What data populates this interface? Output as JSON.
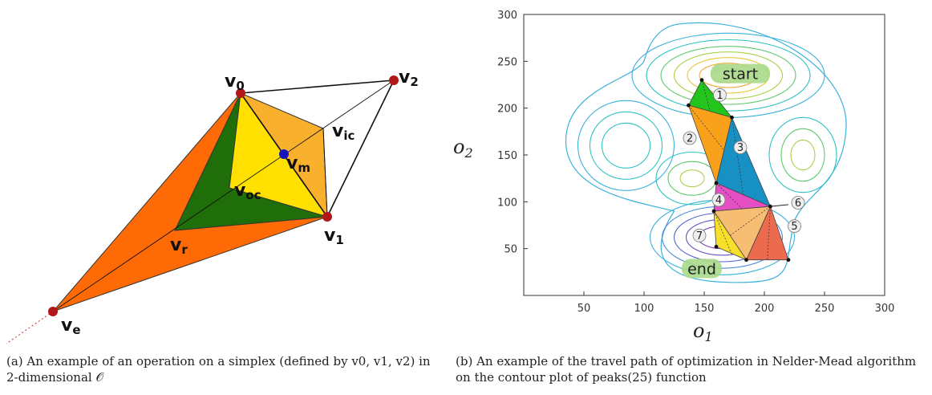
{
  "figure_a": {
    "labels": {
      "v0": [
        "v",
        "0"
      ],
      "v1": [
        "v",
        "1"
      ],
      "v2": [
        "v",
        "2"
      ],
      "ve": [
        "v",
        "e"
      ],
      "vr": [
        "v",
        "r"
      ],
      "vm": [
        "v",
        "m"
      ],
      "vic": [
        "v",
        "ic"
      ],
      "voc": [
        "v",
        "oc"
      ]
    },
    "colors": {
      "reflection": "#fd6a06",
      "outer_contraction": "#1f6e0a",
      "inner_contraction": "#ffe000",
      "inner_right": "#f9b02d",
      "vertex": "#b01818",
      "centroid": "#1515c0"
    },
    "caption": "(a) An example of an operation on a simplex (defined by v0, v1, v2) in 2-dimensional 𝒪"
  },
  "chart_data": {
    "type": "contour",
    "xlim": [
      0,
      300
    ],
    "ylim": [
      0,
      300
    ],
    "xticks": [
      50,
      100,
      150,
      200,
      250,
      300
    ],
    "yticks": [
      50,
      100,
      150,
      200,
      250,
      300
    ],
    "xlabel": "o1",
    "ylabel": "o2",
    "xlabel_parts": [
      "o",
      "1"
    ],
    "ylabel_parts": [
      "o",
      "2"
    ],
    "path_points": [
      {
        "x": 148,
        "y": 230
      },
      {
        "x": 137,
        "y": 203
      },
      {
        "x": 173,
        "y": 190
      },
      {
        "x": 160,
        "y": 120
      },
      {
        "x": 205,
        "y": 95
      },
      {
        "x": 158,
        "y": 90
      },
      {
        "x": 185,
        "y": 38
      },
      {
        "x": 220,
        "y": 38
      },
      {
        "x": 160,
        "y": 52
      }
    ],
    "triangles": [
      {
        "step": "1",
        "vertices": [
          0,
          1,
          2
        ],
        "color": "#23c41c"
      },
      {
        "step": "2",
        "vertices": [
          1,
          2,
          3
        ],
        "color": "#f9a11b"
      },
      {
        "step": "3",
        "vertices": [
          2,
          3,
          4
        ],
        "color": "#1790c4"
      },
      {
        "step": "4",
        "vertices": [
          3,
          4,
          5
        ],
        "color": "#e54fc4"
      },
      {
        "step": "5",
        "vertices": [
          4,
          6,
          7
        ],
        "color": "#ec6a4e"
      },
      {
        "step": "6",
        "vertices": [
          4,
          5,
          6
        ],
        "color": "#f7bd73"
      },
      {
        "step": "7",
        "vertices": [
          5,
          6,
          8
        ],
        "color": "#f8df2a"
      }
    ],
    "step_labels": [
      {
        "text": "1",
        "x": 163,
        "y": 214
      },
      {
        "text": "2",
        "x": 138,
        "y": 168
      },
      {
        "text": "3",
        "x": 180,
        "y": 158
      },
      {
        "text": "4",
        "x": 162,
        "y": 102
      },
      {
        "text": "5",
        "x": 225,
        "y": 74
      },
      {
        "text": "6",
        "x": 228,
        "y": 99
      },
      {
        "text": "7",
        "x": 146,
        "y": 64
      }
    ],
    "annotations": [
      {
        "text": "start",
        "x": 180,
        "y": 236
      },
      {
        "text": "end",
        "x": 148,
        "y": 28
      }
    ],
    "contour_colors": [
      "#3ab0dc",
      "#2fc2c2",
      "#5ec96e",
      "#a9d048",
      "#e8c838",
      "#f2a93a"
    ],
    "contour_low_colors": [
      "#3ab0dc",
      "#4b8ad8",
      "#5266cc",
      "#6a4fc0",
      "#7e3fb0"
    ]
  },
  "figure_b": {
    "caption": "(b) An example of the travel path of optimization in Nelder-Mead algorithm on the contour plot of peaks(25) function"
  }
}
